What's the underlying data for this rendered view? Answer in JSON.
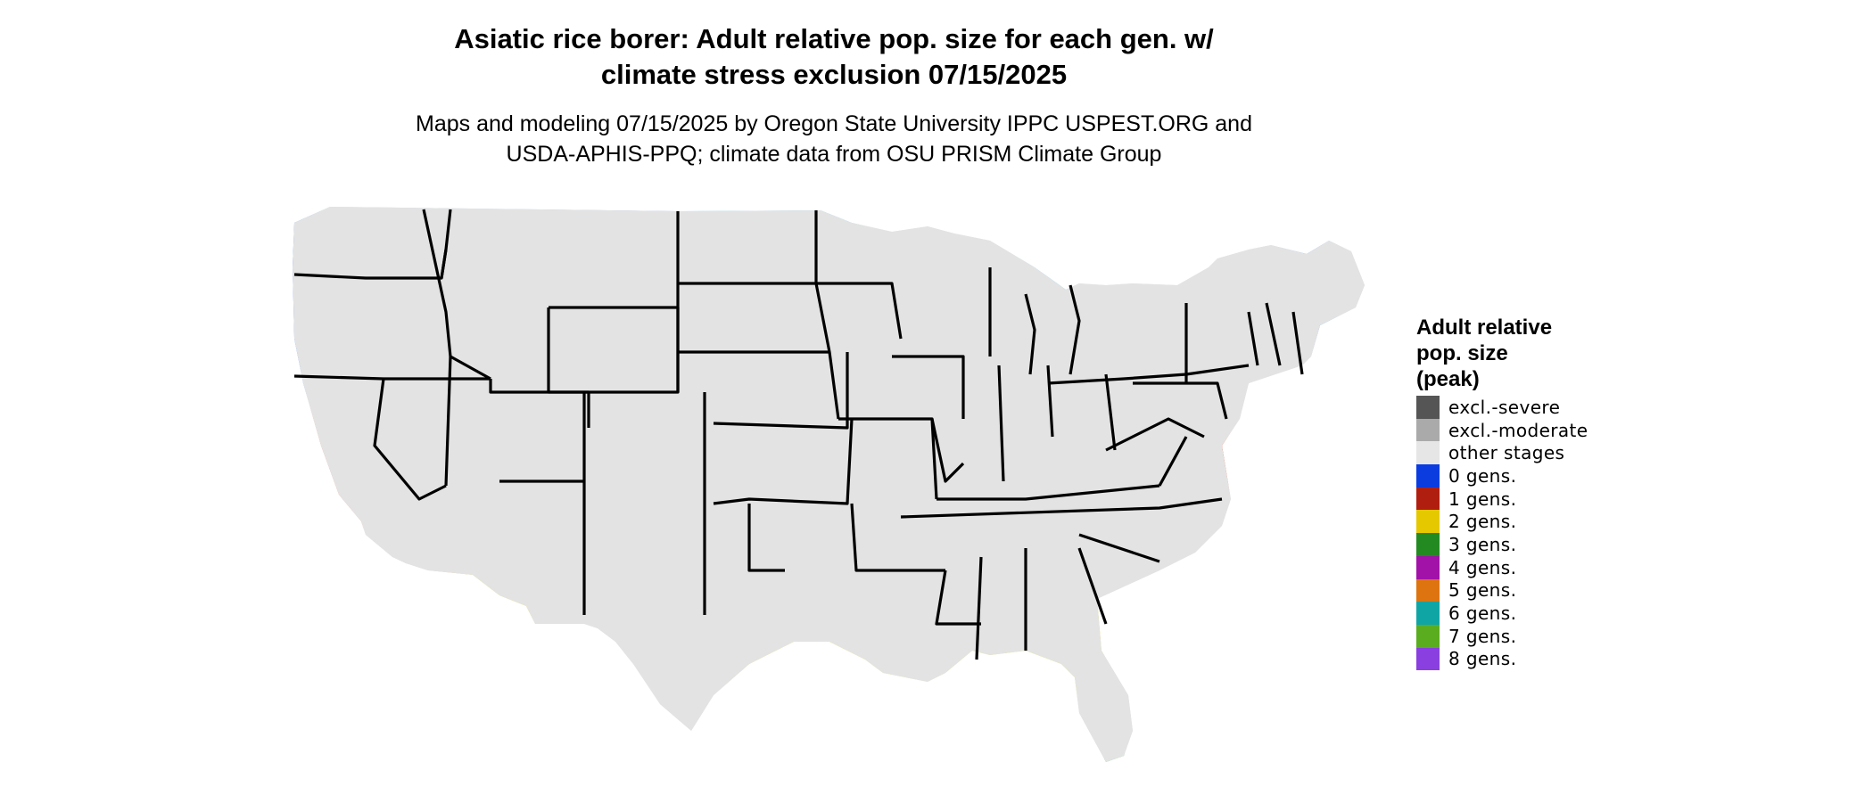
{
  "title": {
    "line1": "Asiatic rice borer: Adult relative pop. size for each gen. w/",
    "line2": "climate stress exclusion 07/15/2025"
  },
  "subtitle": {
    "line1": "Maps and modeling 07/15/2025 by Oregon State University IPPC USPEST.ORG and",
    "line2": "USDA-APHIS-PPQ; climate data from OSU PRISM Climate Group"
  },
  "legend": {
    "title_lines": [
      "Adult relative",
      "pop. size",
      "(peak)"
    ],
    "items": [
      {
        "label": "excl.-severe",
        "color": "#555555"
      },
      {
        "label": "excl.-moderate",
        "color": "#aaaaaa"
      },
      {
        "label": "other stages",
        "color": "#e6e6e6"
      },
      {
        "label": "0 gens.",
        "color": "#0a3ce0"
      },
      {
        "label": "1 gens.",
        "color": "#b01e10"
      },
      {
        "label": "2 gens.",
        "color": "#e5c800"
      },
      {
        "label": "3 gens.",
        "color": "#238a22"
      },
      {
        "label": "4 gens.",
        "color": "#a212a8"
      },
      {
        "label": "5 gens.",
        "color": "#dd7410"
      },
      {
        "label": "6 gens.",
        "color": "#10a5a5"
      },
      {
        "label": "7 gens.",
        "color": "#5aad1e"
      },
      {
        "label": "8 gens.",
        "color": "#8a3fe0"
      }
    ]
  },
  "map_colors": {
    "background": "#e3e3e3",
    "dark_blue": "#0d6ff0",
    "light_blue": "#00b4ff",
    "red_orange": "#e83a10",
    "dark_red": "#b73414",
    "yellow": "#f2ec00",
    "green": "#5ed35e",
    "border": "#000000"
  }
}
